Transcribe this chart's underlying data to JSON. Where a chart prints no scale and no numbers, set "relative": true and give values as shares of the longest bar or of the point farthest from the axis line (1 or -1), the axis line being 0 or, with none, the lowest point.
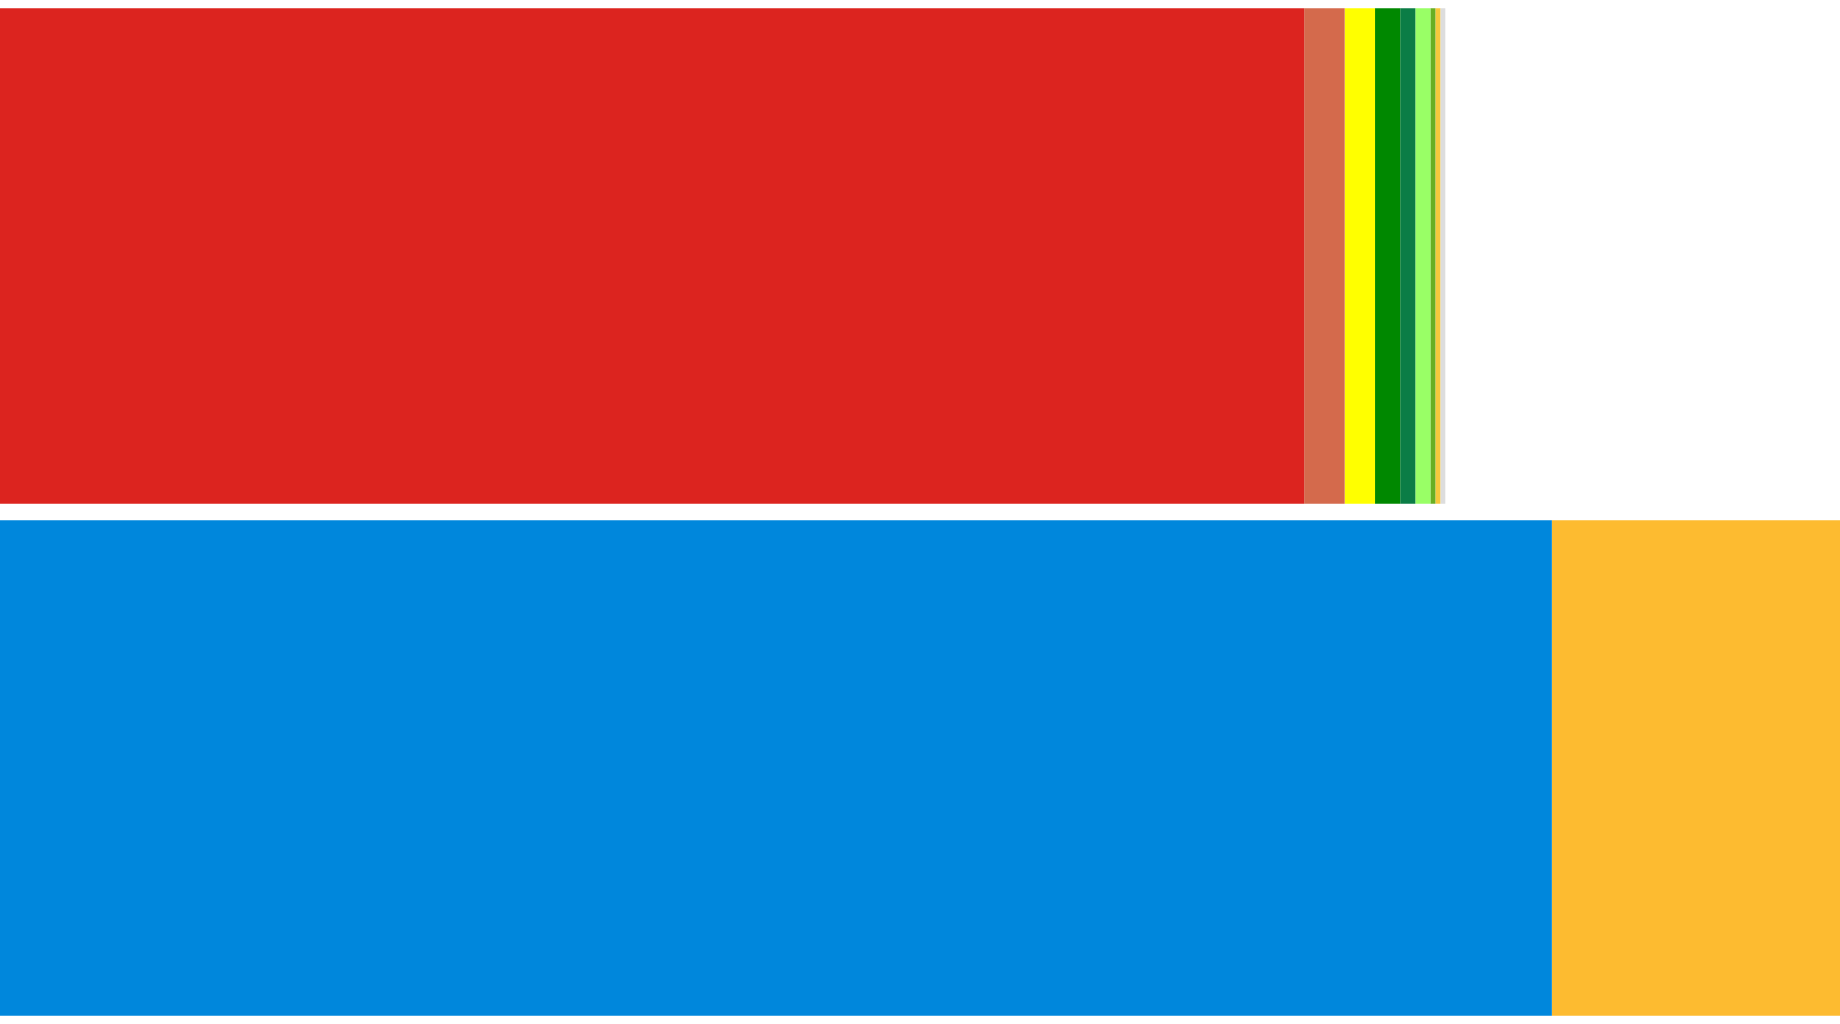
{
  "chart_data": {
    "type": "bar",
    "orientation": "horizontal",
    "stacked": true,
    "relative": true,
    "grid": false,
    "legend": false,
    "tick_labels": false,
    "categories": [
      null,
      null
    ],
    "series": [
      {
        "color": "#dc241f",
        "values": [
          0.7088,
          null
        ]
      },
      {
        "color": "#d46a4c",
        "values": [
          0.022,
          null
        ]
      },
      {
        "color": "#ffff00",
        "values": [
          0.0165,
          null
        ]
      },
      {
        "color": "#008800",
        "values": [
          0.0137,
          null
        ]
      },
      {
        "color": "#0b7d46",
        "values": [
          0.0082,
          null
        ]
      },
      {
        "color": "#99ff66",
        "values": [
          0.0082,
          null
        ]
      },
      {
        "color": "#6aaf23",
        "values": [
          0.0027,
          null
        ]
      },
      {
        "color": "#f8c83c",
        "values": [
          0.0027,
          null
        ]
      },
      {
        "color": "#dddddd",
        "values": [
          0.0027,
          null
        ]
      },
      {
        "color": "#0087dc",
        "values": [
          null,
          0.8434
        ]
      },
      {
        "color": "#fdbb30",
        "values": [
          null,
          0.1566
        ]
      }
    ]
  }
}
